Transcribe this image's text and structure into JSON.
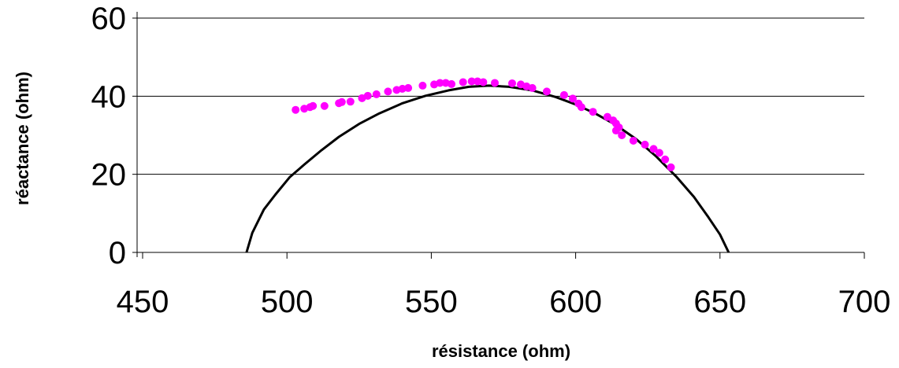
{
  "chart_data": {
    "type": "scatter",
    "title": "",
    "xlabel": "résistance (ohm)",
    "ylabel": "réactance (ohm)",
    "xlim": [
      450,
      700
    ],
    "ylim": [
      0,
      60
    ],
    "x_ticks": [
      450,
      500,
      550,
      600,
      650,
      700
    ],
    "y_ticks": [
      0,
      20,
      40,
      60
    ],
    "grid": "horizontal",
    "legend": "none",
    "series": [
      {
        "type": "scatter",
        "color": "#ff00ff",
        "points": [
          [
            503,
            36.5
          ],
          [
            506,
            36.8
          ],
          [
            508,
            37.2
          ],
          [
            509,
            37.5
          ],
          [
            513,
            37.5
          ],
          [
            518,
            38.2
          ],
          [
            519,
            38.5
          ],
          [
            522,
            38.6
          ],
          [
            526,
            39.5
          ],
          [
            528,
            40.1
          ],
          [
            531,
            40.5
          ],
          [
            535,
            41.2
          ],
          [
            538,
            41.6
          ],
          [
            540,
            41.9
          ],
          [
            542,
            42.1
          ],
          [
            547,
            42.7
          ],
          [
            551,
            43.0
          ],
          [
            553,
            43.4
          ],
          [
            555,
            43.4
          ],
          [
            557,
            43.1
          ],
          [
            561,
            43.6
          ],
          [
            564,
            43.8
          ],
          [
            566,
            43.8
          ],
          [
            568,
            43.6
          ],
          [
            572,
            43.4
          ],
          [
            578,
            43.3
          ],
          [
            581,
            43.0
          ],
          [
            583,
            42.5
          ],
          [
            585,
            42.1
          ],
          [
            590,
            41.2
          ],
          [
            596,
            40.3
          ],
          [
            599,
            39.4
          ],
          [
            601,
            38.1
          ],
          [
            602,
            37.2
          ],
          [
            606,
            36.0
          ],
          [
            611,
            34.7
          ],
          [
            613,
            33.8
          ],
          [
            614,
            33.0
          ],
          [
            615,
            32.0
          ],
          [
            614,
            31.2
          ],
          [
            616,
            30.0
          ],
          [
            620,
            28.6
          ],
          [
            624,
            27.6
          ],
          [
            627,
            26.5
          ],
          [
            629,
            25.5
          ],
          [
            631,
            23.8
          ],
          [
            633,
            21.8
          ]
        ]
      },
      {
        "type": "line",
        "color": "#000000",
        "points": [
          [
            486,
            0
          ],
          [
            488,
            5
          ],
          [
            492,
            11
          ],
          [
            496,
            14.8
          ],
          [
            501,
            19.3
          ],
          [
            506,
            22.5
          ],
          [
            512,
            26.2
          ],
          [
            518,
            29.6
          ],
          [
            525,
            32.9
          ],
          [
            532,
            35.6
          ],
          [
            540,
            38.2
          ],
          [
            548,
            40.1
          ],
          [
            556,
            41.5
          ],
          [
            563,
            42.4
          ],
          [
            570,
            42.7
          ],
          [
            577,
            42.4
          ],
          [
            585,
            41.5
          ],
          [
            593,
            39.8
          ],
          [
            600,
            37.9
          ],
          [
            607,
            35.5
          ],
          [
            614,
            32.6
          ],
          [
            621,
            29.0
          ],
          [
            628,
            24.5
          ],
          [
            635,
            19.3
          ],
          [
            641,
            14.2
          ],
          [
            646,
            9.0
          ],
          [
            650,
            4.6
          ],
          [
            653,
            0
          ]
        ]
      }
    ]
  }
}
